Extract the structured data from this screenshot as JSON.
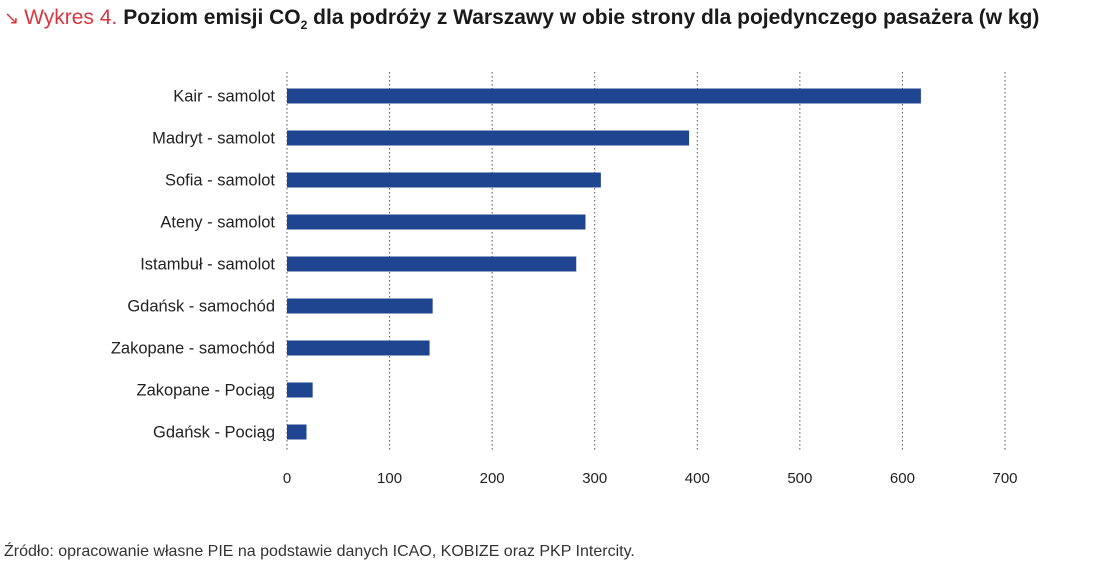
{
  "title": {
    "arrow": "↘",
    "label": "Wykres 4.",
    "text_before": "Poziom emisji CO",
    "subscript": "2",
    "text_after": " dla podróży z Warszawy w obie strony dla pojedynczego pasażera (w kg)"
  },
  "source": "Źródło: opracowanie własne PIE na podstawie danych ICAO, KOBIZE oraz PKP Intercity.",
  "colors": {
    "bar": "#1f4591",
    "grid": "#555555",
    "text": "#222222"
  },
  "chart_data": {
    "type": "bar",
    "orientation": "horizontal",
    "categories": [
      "Kair - samolot",
      "Madryt - samolot",
      "Sofia - samolot",
      "Ateny - samolot",
      "Istambuł - samolot",
      "Gdańsk - samochód",
      "Zakopane - samochód",
      "Zakopane - Pociąg",
      "Gdańsk - Pociąg"
    ],
    "values": [
      618,
      392,
      306,
      291,
      282,
      142,
      139,
      25,
      19
    ],
    "xlim": [
      0,
      700
    ],
    "xticks": [
      0,
      100,
      200,
      300,
      400,
      500,
      600,
      700
    ],
    "grid": "vertical-dotted",
    "legend": "none"
  }
}
